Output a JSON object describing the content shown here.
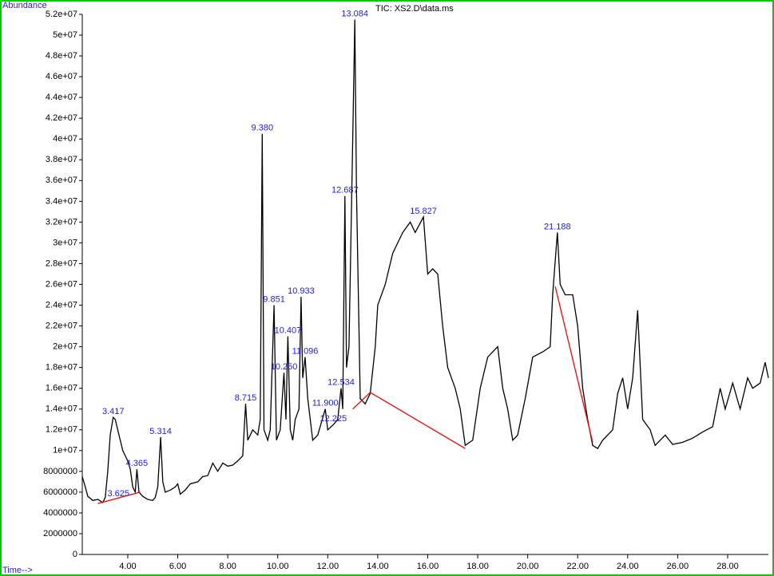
{
  "chart_data": {
    "type": "line",
    "title": "TIC: XS2.D\\data.ms",
    "ylabel": "Abundance",
    "xlabel": "Time-->",
    "xlim": [
      2.18,
      29.63
    ],
    "ylim": [
      0,
      52000000
    ],
    "xticks": [
      {
        "value": 4,
        "label": "4.00"
      },
      {
        "value": 6,
        "label": "6.00"
      },
      {
        "value": 8,
        "label": "8.00"
      },
      {
        "value": 10,
        "label": "10.00"
      },
      {
        "value": 12,
        "label": "12.00"
      },
      {
        "value": 14,
        "label": "14.00"
      },
      {
        "value": 16,
        "label": "16.00"
      },
      {
        "value": 18,
        "label": "18.00"
      },
      {
        "value": 20,
        "label": "20.00"
      },
      {
        "value": 22,
        "label": "22.00"
      },
      {
        "value": 24,
        "label": "24.00"
      },
      {
        "value": 26,
        "label": "26.00"
      },
      {
        "value": 28,
        "label": "28.00"
      }
    ],
    "yticks": [
      0,
      2000000,
      4000000,
      6000000,
      8000000,
      {
        "value": 10000000,
        "label": "1e+07"
      },
      {
        "value": 12000000,
        "label": "1.2e+07"
      },
      {
        "value": 14000000,
        "label": "1.4e+07"
      },
      {
        "value": 16000000,
        "label": "1.6e+07"
      },
      {
        "value": 18000000,
        "label": "1.8e+07"
      },
      {
        "value": 20000000,
        "label": "2e+07"
      },
      {
        "value": 22000000,
        "label": "2.2e+07"
      },
      {
        "value": 24000000,
        "label": "2.4e+07"
      },
      {
        "value": 26000000,
        "label": "2.6e+07"
      },
      {
        "value": 28000000,
        "label": "2.8e+07"
      },
      {
        "value": 30000000,
        "label": "3e+07"
      },
      {
        "value": 32000000,
        "label": "3.2e+07"
      },
      {
        "value": 34000000,
        "label": "3.4e+07"
      },
      {
        "value": 36000000,
        "label": "3.6e+07"
      },
      {
        "value": 38000000,
        "label": "3.8e+07"
      },
      {
        "value": 40000000,
        "label": "4e+07"
      },
      {
        "value": 42000000,
        "label": "4.2e+07"
      },
      {
        "value": 44000000,
        "label": "4.4e+07"
      },
      {
        "value": 46000000,
        "label": "4.6e+07"
      },
      {
        "value": 48000000,
        "label": "4.8e+07"
      },
      {
        "value": 50000000,
        "label": "5e+07"
      },
      {
        "value": 52000000,
        "label": "5.2e+07"
      }
    ],
    "traces": [
      {
        "color": "#000000",
        "x": [
          2.18,
          2.3,
          2.4,
          2.6,
          2.8,
          3.0,
          3.1,
          3.2,
          3.3,
          3.417,
          3.5,
          3.6,
          3.8,
          4.0,
          4.1,
          4.2,
          4.3,
          4.365,
          4.45,
          4.6,
          4.8,
          5.0,
          5.1,
          5.2,
          5.314,
          5.4,
          5.5,
          5.7,
          5.9,
          6.0,
          6.1,
          6.3,
          6.5,
          6.8,
          7.0,
          7.2,
          7.4,
          7.6,
          7.8,
          8.0,
          8.2,
          8.4,
          8.6,
          8.715,
          8.8,
          9.0,
          9.2,
          9.3,
          9.38,
          9.45,
          9.6,
          9.7,
          9.851,
          9.95,
          10.1,
          10.25,
          10.33,
          10.407,
          10.5,
          10.6,
          10.7,
          10.85,
          10.933,
          11.0,
          11.096,
          11.2,
          11.4,
          11.6,
          11.9,
          12.0,
          12.225,
          12.4,
          12.534,
          12.6,
          12.687,
          12.75,
          12.85,
          13.0,
          13.084,
          13.15,
          13.3,
          13.5,
          13.7,
          13.9,
          14.0,
          14.3,
          14.6,
          15.0,
          15.3,
          15.5,
          15.827,
          16.0,
          16.2,
          16.4,
          16.6,
          16.8,
          17.1,
          17.3,
          17.5,
          17.8,
          18.1,
          18.4,
          18.8,
          19.0,
          19.2,
          19.4,
          19.6,
          19.9,
          20.2,
          20.6,
          20.9,
          21.0,
          21.188,
          21.3,
          21.5,
          21.8,
          22.0,
          22.2,
          22.4,
          22.6,
          22.8,
          23.0,
          23.4,
          23.6,
          23.8,
          24.0,
          24.2,
          24.4,
          24.6,
          24.9,
          25.1,
          25.5,
          25.8,
          26.2,
          26.6,
          27.0,
          27.4,
          27.7,
          27.9,
          28.2,
          28.5,
          28.8,
          29.0,
          29.3,
          29.5,
          29.63
        ],
        "values": [
          7500000,
          6500000,
          5600000,
          5200000,
          5300000,
          5000000,
          5500000,
          8000000,
          11500000,
          13200000,
          13000000,
          12000000,
          10000000,
          9000000,
          8200000,
          6500000,
          6000000,
          8200000,
          6000000,
          5600000,
          5300000,
          5200000,
          5500000,
          6500000,
          11300000,
          7000000,
          6000000,
          6200000,
          6500000,
          6800000,
          5800000,
          6200000,
          6800000,
          7000000,
          7500000,
          7600000,
          8800000,
          8000000,
          8800000,
          8500000,
          8600000,
          9000000,
          9500000,
          14500000,
          11000000,
          12000000,
          11500000,
          13000000,
          40500000,
          12000000,
          11000000,
          12000000,
          24000000,
          11000000,
          12000000,
          17500000,
          13000000,
          21000000,
          12000000,
          11000000,
          13000000,
          14000000,
          24800000,
          17000000,
          19000000,
          15000000,
          11000000,
          11500000,
          14000000,
          12000000,
          12500000,
          13000000,
          16000000,
          14000000,
          34500000,
          18000000,
          20000000,
          40000000,
          51500000,
          35000000,
          15000000,
          14500000,
          15500000,
          20000000,
          24000000,
          26000000,
          29000000,
          31000000,
          32000000,
          31000000,
          32500000,
          27000000,
          27500000,
          27000000,
          22000000,
          18000000,
          16000000,
          14000000,
          10500000,
          11000000,
          16000000,
          19000000,
          20000000,
          16000000,
          14000000,
          11000000,
          11500000,
          15000000,
          19000000,
          19500000,
          20000000,
          25000000,
          31000000,
          26000000,
          25000000,
          25000000,
          22000000,
          16000000,
          13000000,
          10500000,
          10200000,
          11000000,
          12000000,
          15500000,
          17000000,
          14000000,
          17000000,
          23500000,
          13000000,
          12000000,
          10500000,
          11500000,
          10600000,
          10800000,
          11200000,
          11800000,
          12300000,
          16000000,
          14000000,
          16500000,
          14000000,
          17000000,
          16000000,
          16500000,
          18500000,
          17000000
        ]
      },
      {
        "color": "#ff0000",
        "x": [
          2.8,
          4.5,
          null,
          13.0,
          13.7,
          17.5,
          null,
          21.1,
          22.6
        ],
        "values": [
          4900000,
          6000000,
          null,
          14000000,
          15600000,
          10200000,
          null,
          25800000,
          10800000
        ]
      }
    ],
    "peaks": [
      {
        "x": 3.417,
        "y": 13200000
      },
      {
        "x": 3.625,
        "y": 5300000
      },
      {
        "x": 4.365,
        "y": 8200000
      },
      {
        "x": 5.314,
        "y": 11300000
      },
      {
        "x": 8.715,
        "y": 14500000
      },
      {
        "x": 9.38,
        "label": "9.380",
        "y": 40500000
      },
      {
        "x": 9.851,
        "y": 24000000
      },
      {
        "x": 10.25,
        "label": "10.250",
        "y": 17500000
      },
      {
        "x": 10.407,
        "y": 21000000
      },
      {
        "x": 10.933,
        "y": 24800000
      },
      {
        "x": 11.096,
        "y": 19000000
      },
      {
        "x": 11.9,
        "label": "11.900",
        "y": 14000000
      },
      {
        "x": 12.225,
        "y": 12500000
      },
      {
        "x": 12.534,
        "y": 16000000
      },
      {
        "x": 12.687,
        "y": 34500000
      },
      {
        "x": 13.084,
        "y": 51500000
      },
      {
        "x": 15.827,
        "y": 32500000
      },
      {
        "x": 21.188,
        "y": 31000000
      }
    ]
  }
}
